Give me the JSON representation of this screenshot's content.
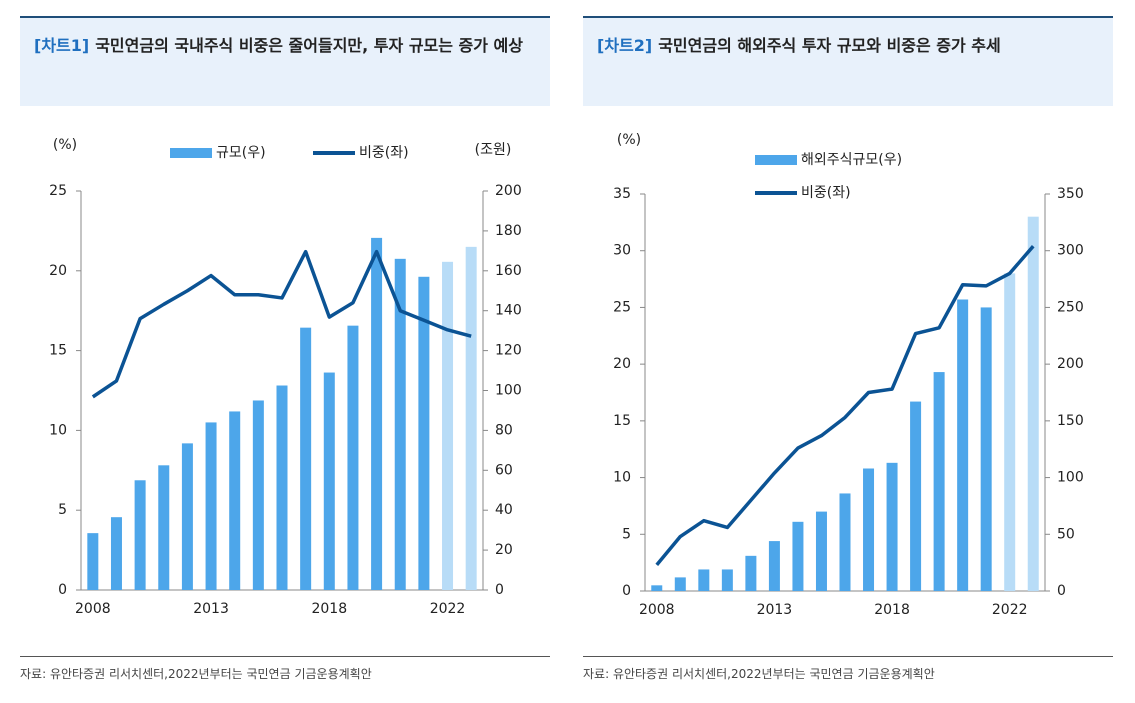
{
  "chart_data": [
    {
      "type": "bar_line",
      "label": "[차트1]",
      "title": "국민연금의 국내주식 비중은 줄어들지만, 투자 규모는 증가 예상",
      "source": "자료: 유안타증권 리서치센터,2022년부터는 국민연금 기금운용계획안",
      "y_unit": "(%)",
      "y2_unit": "(조원)",
      "categories": [
        "2008",
        null,
        null,
        null,
        null,
        "2013",
        null,
        null,
        null,
        null,
        "2018",
        null,
        null,
        null,
        null,
        "2022",
        null
      ],
      "series": [
        {
          "name": "규모(우)",
          "type": "bar",
          "axis": "y2",
          "color": "#4da6ea",
          "colors": [
            "#4da6ea",
            "#4da6ea",
            "#4da6ea",
            "#4da6ea",
            "#4da6ea",
            "#4da6ea",
            "#4da6ea",
            "#4da6ea",
            "#4da6ea",
            "#4da6ea",
            "#4da6ea",
            "#4da6ea",
            "#4da6ea",
            "#4da6ea",
            "#4da6ea",
            "#b8dcf7",
            "#b8dcf7"
          ],
          "values": [
            28.5,
            36.5,
            55,
            62.5,
            73.5,
            84,
            89.5,
            95,
            102.5,
            131.5,
            109,
            132.5,
            176.5,
            166,
            157,
            164.5,
            172
          ]
        },
        {
          "name": "비중(좌)",
          "type": "line",
          "axis": "y",
          "color": "#0b5394",
          "values": [
            12.1,
            13.1,
            17.0,
            17.9,
            18.75,
            19.7,
            18.5,
            18.5,
            18.3,
            21.2,
            17.1,
            18.0,
            21.2,
            17.5,
            16.9,
            16.3,
            15.9
          ]
        }
      ],
      "ylim": [
        0,
        25
      ],
      "yticks": [
        0,
        5,
        10,
        15,
        20,
        25
      ],
      "y2lim": [
        0,
        200
      ],
      "y2ticks": [
        0,
        20,
        40,
        60,
        80,
        100,
        120,
        140,
        160,
        180,
        200
      ],
      "legend": "top-row"
    },
    {
      "type": "bar_line",
      "label": "[차트2]",
      "title": "국민연금의 해외주식 투자 규모와 비중은 증가 추세",
      "source": "자료: 유안타증권 리서치센터,2022년부터는 국민연금 기금운용계획안",
      "y_unit": "(%)",
      "categories": [
        "2008",
        null,
        null,
        null,
        null,
        "2013",
        null,
        null,
        null,
        null,
        "2018",
        null,
        null,
        null,
        null,
        "2022",
        null
      ],
      "series": [
        {
          "name": "해외주식규모(우)",
          "type": "bar",
          "axis": "y2",
          "color": "#4da6ea",
          "colors": [
            "#4da6ea",
            "#4da6ea",
            "#4da6ea",
            "#4da6ea",
            "#4da6ea",
            "#4da6ea",
            "#4da6ea",
            "#4da6ea",
            "#4da6ea",
            "#4da6ea",
            "#4da6ea",
            "#4da6ea",
            "#4da6ea",
            "#4da6ea",
            "#4da6ea",
            "#b8dcf7",
            "#b8dcf7"
          ],
          "values": [
            5,
            12,
            19,
            19,
            31,
            44,
            61,
            70,
            86,
            108,
            113,
            167,
            193,
            257,
            250,
            280,
            330
          ]
        },
        {
          "name": "비중(좌)",
          "type": "line",
          "axis": "y",
          "color": "#0b5394",
          "values": [
            2.3,
            4.8,
            6.2,
            5.6,
            8.0,
            10.4,
            12.6,
            13.7,
            15.3,
            17.5,
            17.8,
            22.7,
            23.2,
            27.0,
            26.9,
            28.0,
            30.4
          ]
        }
      ],
      "ylim": [
        0,
        35
      ],
      "yticks": [
        0,
        5,
        10,
        15,
        20,
        25,
        30,
        35
      ],
      "y2lim": [
        0,
        350
      ],
      "y2ticks": [
        0,
        50,
        100,
        150,
        200,
        250,
        300,
        350
      ],
      "legend": "top-stacked"
    }
  ]
}
